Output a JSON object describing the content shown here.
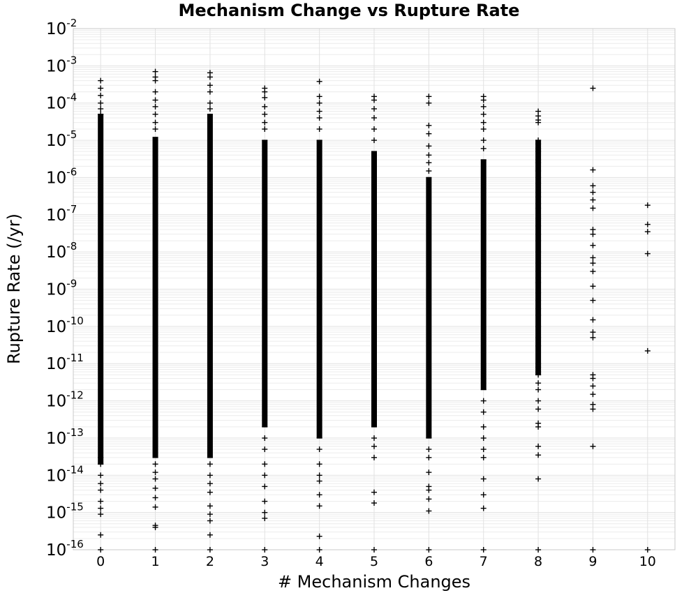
{
  "chart_data": {
    "type": "scatter",
    "title": "Mechanism Change vs Rupture Rate",
    "xlabel": "# Mechanism Changes",
    "ylabel": "Rupture Rate (/yr)",
    "xlim": [
      -0.5,
      10.5
    ],
    "ylim": [
      1e-16,
      0.01
    ],
    "y_scale": "log",
    "grid": true,
    "marker": "plus",
    "marker_color": "#000000",
    "x_ticks": [
      0,
      1,
      2,
      3,
      4,
      5,
      6,
      7,
      8,
      9,
      10
    ],
    "y_tick_labels": [
      {
        "base": "10",
        "exp": "-2"
      },
      {
        "base": "10",
        "exp": "-3"
      },
      {
        "base": "10",
        "exp": "-4"
      },
      {
        "base": "10",
        "exp": "-5"
      },
      {
        "base": "10",
        "exp": "-6"
      },
      {
        "base": "10",
        "exp": "-7"
      },
      {
        "base": "10",
        "exp": "-8"
      },
      {
        "base": "10",
        "exp": "-9"
      },
      {
        "base": "10",
        "exp": "-10"
      },
      {
        "base": "10",
        "exp": "-11"
      },
      {
        "base": "10",
        "exp": "-12"
      },
      {
        "base": "10",
        "exp": "-13"
      },
      {
        "base": "10",
        "exp": "-14"
      },
      {
        "base": "10",
        "exp": "-15"
      },
      {
        "base": "10",
        "exp": "-16"
      }
    ],
    "columns": [
      {
        "x": 0,
        "dense_range": [
          2e-14,
          5e-05
        ],
        "points": [
          0.0004,
          0.00025,
          0.00016,
          0.0001,
          7e-05,
          5e-05,
          3e-14,
          2e-14,
          1e-14,
          6e-15,
          4e-15,
          2e-15,
          1.3e-15,
          9e-16,
          2.5e-16,
          1e-16
        ]
      },
      {
        "x": 1,
        "dense_range": [
          3e-14,
          1.2e-05
        ],
        "points": [
          0.0007,
          0.0005,
          0.0004,
          0.0002,
          0.00012,
          8e-05,
          5e-05,
          3e-05,
          2e-05,
          2e-14,
          1.2e-14,
          8e-15,
          4.5e-15,
          2.5e-15,
          1.4e-15,
          4.5e-16,
          4e-16,
          1e-16
        ]
      },
      {
        "x": 2,
        "dense_range": [
          3e-14,
          5e-05
        ],
        "points": [
          0.00065,
          0.0005,
          0.0003,
          0.0002,
          0.0001,
          7e-05,
          2e-14,
          1e-14,
          6e-15,
          3.5e-15,
          1.5e-15,
          9e-16,
          6e-16,
          2.5e-16,
          1e-16
        ]
      },
      {
        "x": 3,
        "dense_range": [
          2e-13,
          1e-05
        ],
        "points": [
          0.00025,
          0.0002,
          0.00014,
          8e-05,
          5e-05,
          3e-05,
          2e-05,
          1e-13,
          5e-14,
          2e-14,
          1e-14,
          5e-15,
          2e-15,
          1e-15,
          7e-16,
          1e-16
        ]
      },
      {
        "x": 4,
        "dense_range": [
          1e-13,
          1e-05
        ],
        "points": [
          0.00038,
          0.00015,
          0.0001,
          6e-05,
          4e-05,
          2e-05,
          5e-14,
          2e-14,
          1e-14,
          7e-15,
          3e-15,
          1.5e-15,
          2.3e-16,
          1e-16
        ]
      },
      {
        "x": 5,
        "dense_range": [
          2e-13,
          5e-06
        ],
        "points": [
          0.00015,
          0.00012,
          7e-05,
          4e-05,
          2e-05,
          1e-05,
          1e-13,
          6e-14,
          3e-14,
          3.5e-15,
          1.8e-15,
          1e-16
        ]
      },
      {
        "x": 6,
        "dense_range": [
          1e-13,
          1e-06
        ],
        "points": [
          0.00015,
          0.0001,
          2.5e-05,
          1.5e-05,
          7e-06,
          4e-06,
          2.5e-06,
          1.5e-06,
          5e-14,
          3e-14,
          1.2e-14,
          5e-15,
          4e-15,
          2.3e-15,
          1.1e-15,
          1e-16
        ]
      },
      {
        "x": 7,
        "dense_range": [
          2e-12,
          3e-06
        ],
        "points": [
          0.00015,
          0.00012,
          8e-05,
          5e-05,
          3e-05,
          2e-05,
          1e-05,
          6e-06,
          1e-12,
          5e-13,
          2e-13,
          1e-13,
          5e-14,
          3e-14,
          8e-15,
          3e-15,
          1.3e-15,
          1e-16
        ]
      },
      {
        "x": 8,
        "dense_range": [
          5e-12,
          1e-05
        ],
        "points": [
          6e-05,
          4.5e-05,
          3.5e-05,
          3e-05,
          1e-05,
          8e-06,
          6e-06,
          5e-06,
          3e-06,
          2.5e-06,
          1.5e-06,
          1e-06,
          7e-07,
          4e-07,
          3e-07,
          2e-07,
          1.5e-07,
          8e-08,
          5e-08,
          3e-08,
          2e-08,
          1e-08,
          5e-09,
          3e-09,
          2e-09,
          1.5e-09,
          8e-10,
          5e-10,
          3e-10,
          2e-10,
          1e-10,
          5e-11,
          3e-11,
          1e-11,
          8e-12,
          6e-12,
          5e-12,
          3e-12,
          2e-12,
          1e-12,
          6e-13,
          2.5e-13,
          2e-13,
          6e-14,
          3.5e-14,
          8e-15,
          1e-16
        ]
      },
      {
        "x": 9,
        "dense_range": null,
        "points": [
          0.00025,
          1.6e-06,
          6e-07,
          4e-07,
          2.5e-07,
          1.5e-07,
          4e-08,
          3e-08,
          1.5e-08,
          7e-09,
          5e-09,
          3e-09,
          1.2e-09,
          5e-10,
          1.5e-10,
          7e-11,
          5e-11,
          5e-12,
          4e-12,
          2.5e-12,
          1.5e-12,
          8e-13,
          6e-13,
          6e-14,
          1e-16
        ]
      },
      {
        "x": 10,
        "dense_range": null,
        "points": [
          1.8e-07,
          5.5e-08,
          3.5e-08,
          9e-09,
          2.2e-11,
          1e-16
        ]
      }
    ]
  }
}
